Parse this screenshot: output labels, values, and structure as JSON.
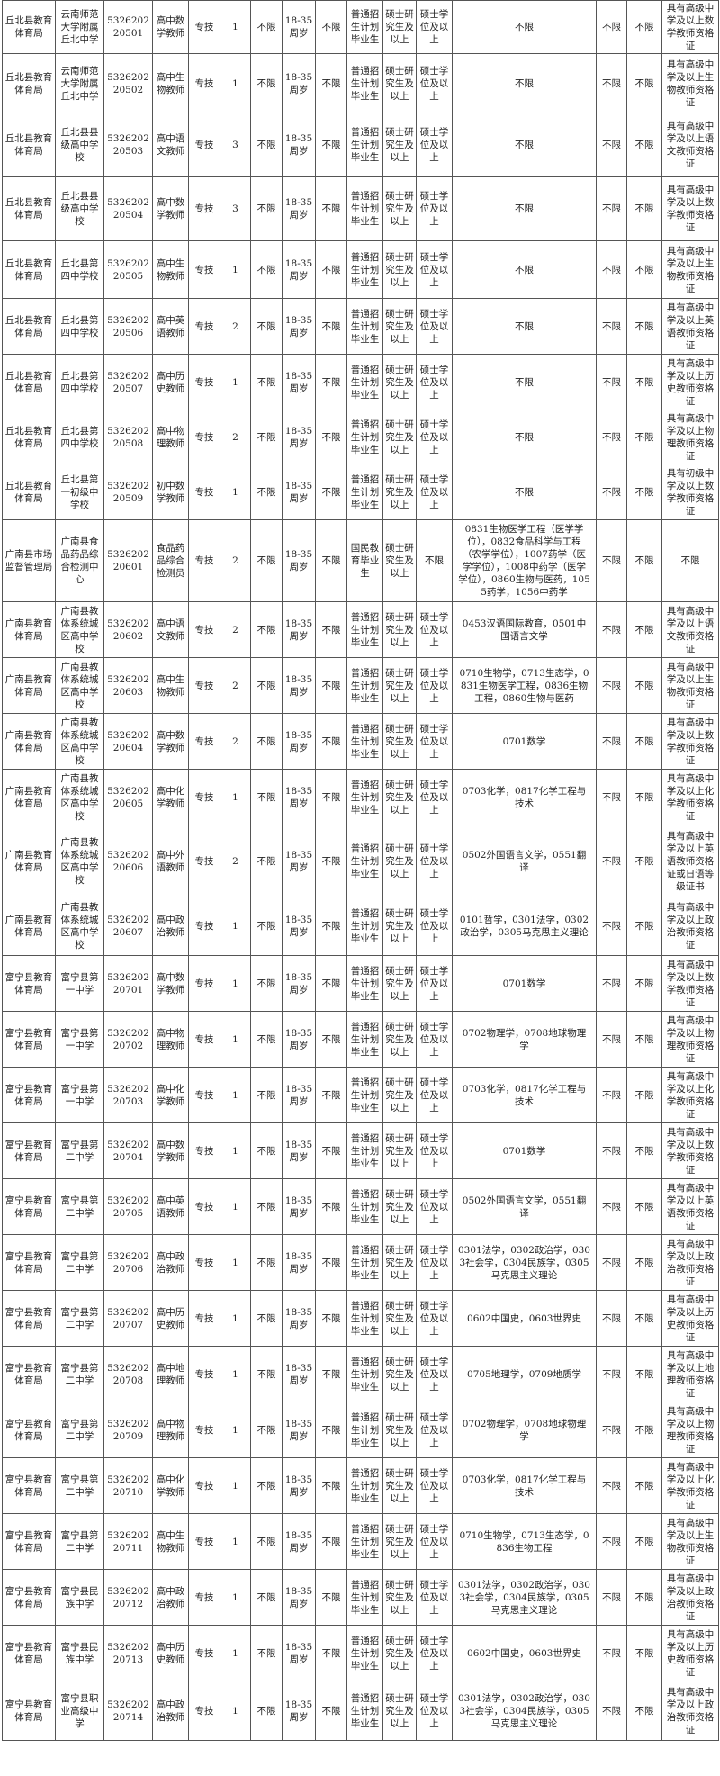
{
  "table": {
    "rows": [
      [
        "丘北县教育体育局",
        "云南师范大学附属丘北中学",
        "532620220501",
        "高中数学教师",
        "专技",
        "1",
        "不限",
        "18-35周岁",
        "不限",
        "普通招生计划毕业生",
        "硕士研究生及以上",
        "硕士学位及以上",
        "不限",
        "不限",
        "不限",
        "具有高级中学及以上数学教师资格证"
      ],
      [
        "丘北县教育体育局",
        "云南师范大学附属丘北中学",
        "532620220502",
        "高中生物教师",
        "专技",
        "1",
        "不限",
        "18-35周岁",
        "不限",
        "普通招生计划毕业生",
        "硕士研究生及以上",
        "硕士学位及以上",
        "不限",
        "不限",
        "不限",
        "具有高级中学及以上生物教师资格证"
      ],
      [
        "丘北县教育体育局",
        "丘北县县级高中学校",
        "532620220503",
        "高中语文教师",
        "专技",
        "3",
        "不限",
        "18-35周岁",
        "不限",
        "普通招生计划毕业生",
        "硕士研究生及以上",
        "硕士学位及以上",
        "不限",
        "不限",
        "不限",
        "具有高级中学及以上语文教师资格证"
      ],
      [
        "丘北县教育体育局",
        "丘北县县级高中学校",
        "532620220504",
        "高中数学教师",
        "专技",
        "3",
        "不限",
        "18-35周岁",
        "不限",
        "普通招生计划毕业生",
        "硕士研究生及以上",
        "硕士学位及以上",
        "不限",
        "不限",
        "不限",
        "具有高级中学及以上数学教师资格证"
      ],
      [
        "丘北县教育体育局",
        "丘北县第四中学校",
        "532620220505",
        "高中生物教师",
        "专技",
        "1",
        "不限",
        "18-35周岁",
        "不限",
        "普通招生计划毕业生",
        "硕士研究生及以上",
        "硕士学位及以上",
        "不限",
        "不限",
        "不限",
        "具有高级中学及以上生物教师资格证"
      ],
      [
        "丘北县教育体育局",
        "丘北县第四中学校",
        "532620220506",
        "高中英语教师",
        "专技",
        "2",
        "不限",
        "18-35周岁",
        "不限",
        "普通招生计划毕业生",
        "硕士研究生及以上",
        "硕士学位及以上",
        "不限",
        "不限",
        "不限",
        "具有高级中学及以上英语教师资格证"
      ],
      [
        "丘北县教育体育局",
        "丘北县第四中学校",
        "532620220507",
        "高中历史教师",
        "专技",
        "1",
        "不限",
        "18-35周岁",
        "不限",
        "普通招生计划毕业生",
        "硕士研究生及以上",
        "硕士学位及以上",
        "不限",
        "不限",
        "不限",
        "具有高级中学及以上历史教师资格证"
      ],
      [
        "丘北县教育体育局",
        "丘北县第四中学校",
        "532620220508",
        "高中物理教师",
        "专技",
        "2",
        "不限",
        "18-35周岁",
        "不限",
        "普通招生计划毕业生",
        "硕士研究生及以上",
        "硕士学位及以上",
        "不限",
        "不限",
        "不限",
        "具有高级中学及以上物理教师资格证"
      ],
      [
        "丘北县教育体育局",
        "丘北县第一初级中学校",
        "532620220509",
        "初中数学教师",
        "专技",
        "1",
        "不限",
        "18-35周岁",
        "不限",
        "普通招生计划毕业生",
        "硕士研究生及以上",
        "硕士学位及以上",
        "不限",
        "不限",
        "不限",
        "具有初级中学及以上数学教师资格证"
      ],
      [
        "广南县市场监督管理局",
        "广南县食品药品综合检测中心",
        "532620220601",
        "食品药品综合检测员",
        "专技",
        "2",
        "不限",
        "18-35周岁",
        "不限",
        "国民教育毕业生",
        "硕士研究生及以上",
        "不限",
        "0831生物医学工程（医学学位），0832食品科学与工程（农学学位），1007药学（医学学位），1008中药学（医学学位），0860生物与医药，1055药学，1056中药学",
        "不限",
        "不限",
        "不限"
      ],
      [
        "广南县教育体育局",
        "广南县教体系统城区高中学校",
        "532620220602",
        "高中语文教师",
        "专技",
        "2",
        "不限",
        "18-35周岁",
        "不限",
        "普通招生计划毕业生",
        "硕士研究生及以上",
        "硕士学位及以上",
        "0453汉语国际教育，0501中国语言文学",
        "不限",
        "不限",
        "具有高级中学及以上语文教师资格证"
      ],
      [
        "广南县教育体育局",
        "广南县教体系统城区高中学校",
        "532620220603",
        "高中生物教师",
        "专技",
        "2",
        "不限",
        "18-35周岁",
        "不限",
        "普通招生计划毕业生",
        "硕士研究生及以上",
        "硕士学位及以上",
        "0710生物学，0713生态学，0831生物医学工程，0836生物工程，0860生物与医药",
        "不限",
        "不限",
        "具有高级中学及以上生物教师资格证"
      ],
      [
        "广南县教育体育局",
        "广南县教体系统城区高中学校",
        "532620220604",
        "高中数学教师",
        "专技",
        "2",
        "不限",
        "18-35周岁",
        "不限",
        "普通招生计划毕业生",
        "硕士研究生及以上",
        "硕士学位及以上",
        "0701数学",
        "不限",
        "不限",
        "具有高级中学及以上数学教师资格证"
      ],
      [
        "广南县教育体育局",
        "广南县教体系统城区高中学校",
        "532620220605",
        "高中化学教师",
        "专技",
        "1",
        "不限",
        "18-35周岁",
        "不限",
        "普通招生计划毕业生",
        "硕士研究生及以上",
        "硕士学位及以上",
        "0703化学，0817化学工程与技术",
        "不限",
        "不限",
        "具有高级中学及以上化学教师资格证"
      ],
      [
        "广南县教育体育局",
        "广南县教体系统城区高中学校",
        "532620220606",
        "高中外语教师",
        "专技",
        "2",
        "不限",
        "18-35周岁",
        "不限",
        "普通招生计划毕业生",
        "硕士研究生及以上",
        "硕士学位及以上",
        "0502外国语言文学，0551翻译",
        "不限",
        "不限",
        "具有高级中学及以上英语教师资格证或日语等级证书"
      ],
      [
        "广南县教育体育局",
        "广南县教体系统城区高中学校",
        "532620220607",
        "高中政治教师",
        "专技",
        "1",
        "不限",
        "18-35周岁",
        "不限",
        "普通招生计划毕业生",
        "硕士研究生及以上",
        "硕士学位及以上",
        "0101哲学，0301法学，0302政治学，0305马克思主义理论",
        "不限",
        "不限",
        "具有高级中学及以上政治教师资格证"
      ],
      [
        "富宁县教育体育局",
        "富宁县第一中学",
        "532620220701",
        "高中数学教师",
        "专技",
        "1",
        "不限",
        "18-35周岁",
        "不限",
        "普通招生计划毕业生",
        "硕士研究生及以上",
        "硕士学位及以上",
        "0701数学",
        "不限",
        "不限",
        "具有高级中学及以上数学教师资格证"
      ],
      [
        "富宁县教育体育局",
        "富宁县第一中学",
        "532620220702",
        "高中物理教师",
        "专技",
        "1",
        "不限",
        "18-35周岁",
        "不限",
        "普通招生计划毕业生",
        "硕士研究生及以上",
        "硕士学位及以上",
        "0702物理学，0708地球物理学",
        "不限",
        "不限",
        "具有高级中学及以上物理教师资格证"
      ],
      [
        "富宁县教育体育局",
        "富宁县第一中学",
        "532620220703",
        "高中化学教师",
        "专技",
        "1",
        "不限",
        "18-35周岁",
        "不限",
        "普通招生计划毕业生",
        "硕士研究生及以上",
        "硕士学位及以上",
        "0703化学，0817化学工程与技术",
        "不限",
        "不限",
        "具有高级中学及以上化学教师资格证"
      ],
      [
        "富宁县教育体育局",
        "富宁县第二中学",
        "532620220704",
        "高中数学教师",
        "专技",
        "1",
        "不限",
        "18-35周岁",
        "不限",
        "普通招生计划毕业生",
        "硕士研究生及以上",
        "硕士学位及以上",
        "0701数学",
        "不限",
        "不限",
        "具有高级中学及以上数学教师资格证"
      ],
      [
        "富宁县教育体育局",
        "富宁县第二中学",
        "532620220705",
        "高中英语教师",
        "专技",
        "1",
        "不限",
        "18-35周岁",
        "不限",
        "普通招生计划毕业生",
        "硕士研究生及以上",
        "硕士学位及以上",
        "0502外国语言文学，0551翻译",
        "不限",
        "不限",
        "具有高级中学及以上英语教师资格证"
      ],
      [
        "富宁县教育体育局",
        "富宁县第二中学",
        "532620220706",
        "高中政治教师",
        "专技",
        "1",
        "不限",
        "18-35周岁",
        "不限",
        "普通招生计划毕业生",
        "硕士研究生及以上",
        "硕士学位及以上",
        "0301法学，0302政治学，0303社会学，0304民族学，0305马克思主义理论",
        "不限",
        "不限",
        "具有高级中学及以上政治教师资格证"
      ],
      [
        "富宁县教育体育局",
        "富宁县第二中学",
        "532620220707",
        "高中历史教师",
        "专技",
        "1",
        "不限",
        "18-35周岁",
        "不限",
        "普通招生计划毕业生",
        "硕士研究生及以上",
        "硕士学位及以上",
        "0602中国史，0603世界史",
        "不限",
        "不限",
        "具有高级中学及以上历史教师资格证"
      ],
      [
        "富宁县教育体育局",
        "富宁县第二中学",
        "532620220708",
        "高中地理教师",
        "专技",
        "1",
        "不限",
        "18-35周岁",
        "不限",
        "普通招生计划毕业生",
        "硕士研究生及以上",
        "硕士学位及以上",
        "0705地理学，0709地质学",
        "不限",
        "不限",
        "具有高级中学及以上地理教师资格证"
      ],
      [
        "富宁县教育体育局",
        "富宁县第二中学",
        "532620220709",
        "高中物理教师",
        "专技",
        "1",
        "不限",
        "18-35周岁",
        "不限",
        "普通招生计划毕业生",
        "硕士研究生及以上",
        "硕士学位及以上",
        "0702物理学，0708地球物理学",
        "不限",
        "不限",
        "具有高级中学及以上物理教师资格证"
      ],
      [
        "富宁县教育体育局",
        "富宁县第二中学",
        "532620220710",
        "高中化学教师",
        "专技",
        "1",
        "不限",
        "18-35周岁",
        "不限",
        "普通招生计划毕业生",
        "硕士研究生及以上",
        "硕士学位及以上",
        "0703化学，0817化学工程与技术",
        "不限",
        "不限",
        "具有高级中学及以上化学教师资格证"
      ],
      [
        "富宁县教育体育局",
        "富宁县第二中学",
        "532620220711",
        "高中生物教师",
        "专技",
        "1",
        "不限",
        "18-35周岁",
        "不限",
        "普通招生计划毕业生",
        "硕士研究生及以上",
        "硕士学位及以上",
        "0710生物学，0713生态学，0836生物工程",
        "不限",
        "不限",
        "具有高级中学及以上生物教师资格证"
      ],
      [
        "富宁县教育体育局",
        "富宁县民族中学",
        "532620220712",
        "高中政治教师",
        "专技",
        "1",
        "不限",
        "18-35周岁",
        "不限",
        "普通招生计划毕业生",
        "硕士研究生及以上",
        "硕士学位及以上",
        "0301法学，0302政治学，0303社会学，0304民族学，0305马克思主义理论",
        "不限",
        "不限",
        "具有高级中学及以上政治教师资格证"
      ],
      [
        "富宁县教育体育局",
        "富宁县民族中学",
        "532620220713",
        "高中历史教师",
        "专技",
        "1",
        "不限",
        "18-35周岁",
        "不限",
        "普通招生计划毕业生",
        "硕士研究生及以上",
        "硕士学位及以上",
        "0602中国史，0603世界史",
        "不限",
        "不限",
        "具有高级中学及以上历史教师资格证"
      ],
      [
        "富宁县教育体育局",
        "富宁县职业高级中学",
        "532620220714",
        "高中政治教师",
        "专技",
        "1",
        "不限",
        "18-35周岁",
        "不限",
        "普通招生计划毕业生",
        "硕士研究生及以上",
        "硕士学位及以上",
        "0301法学，0302政治学，0303社会学，0304民族学，0305马克思主义理论",
        "不限",
        "不限",
        "具有高级中学及以上政治教师资格证"
      ]
    ]
  }
}
